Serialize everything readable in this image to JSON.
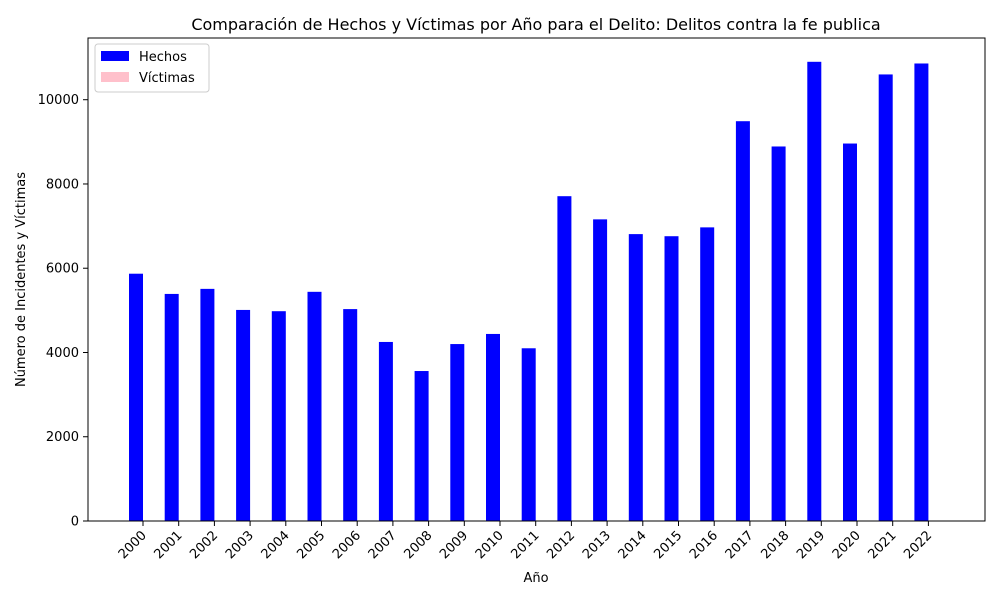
{
  "chart_data": {
    "type": "bar",
    "title": "Comparación de Hechos y Víctimas por Año para el Delito: Delitos contra la fe publica",
    "xlabel": "Año",
    "ylabel": "Número de Incidentes y Víctimas",
    "categories": [
      "2000",
      "2001",
      "2002",
      "2003",
      "2004",
      "2005",
      "2006",
      "2007",
      "2008",
      "2009",
      "2010",
      "2011",
      "2012",
      "2013",
      "2014",
      "2015",
      "2016",
      "2017",
      "2018",
      "2019",
      "2020",
      "2021",
      "2022"
    ],
    "series": [
      {
        "name": "Hechos",
        "color": "#0000ff",
        "values": [
          5870,
          5390,
          5510,
          5010,
          4980,
          5440,
          5030,
          4250,
          3560,
          4200,
          4440,
          4100,
          7710,
          7160,
          6810,
          6760,
          6970,
          9490,
          8890,
          10900,
          8960,
          10600,
          10860
        ]
      },
      {
        "name": "Víctimas",
        "color": "#ffc0cb",
        "values": [
          0,
          0,
          0,
          0,
          0,
          0,
          0,
          0,
          0,
          0,
          0,
          0,
          0,
          0,
          0,
          0,
          0,
          0,
          0,
          0,
          0,
          0,
          0
        ]
      }
    ],
    "ylim": [
      0,
      11465
    ],
    "yticks": [
      "0",
      "2000",
      "4000",
      "6000",
      "8000",
      "10000"
    ],
    "grid": false,
    "legend_position": "top-left"
  }
}
